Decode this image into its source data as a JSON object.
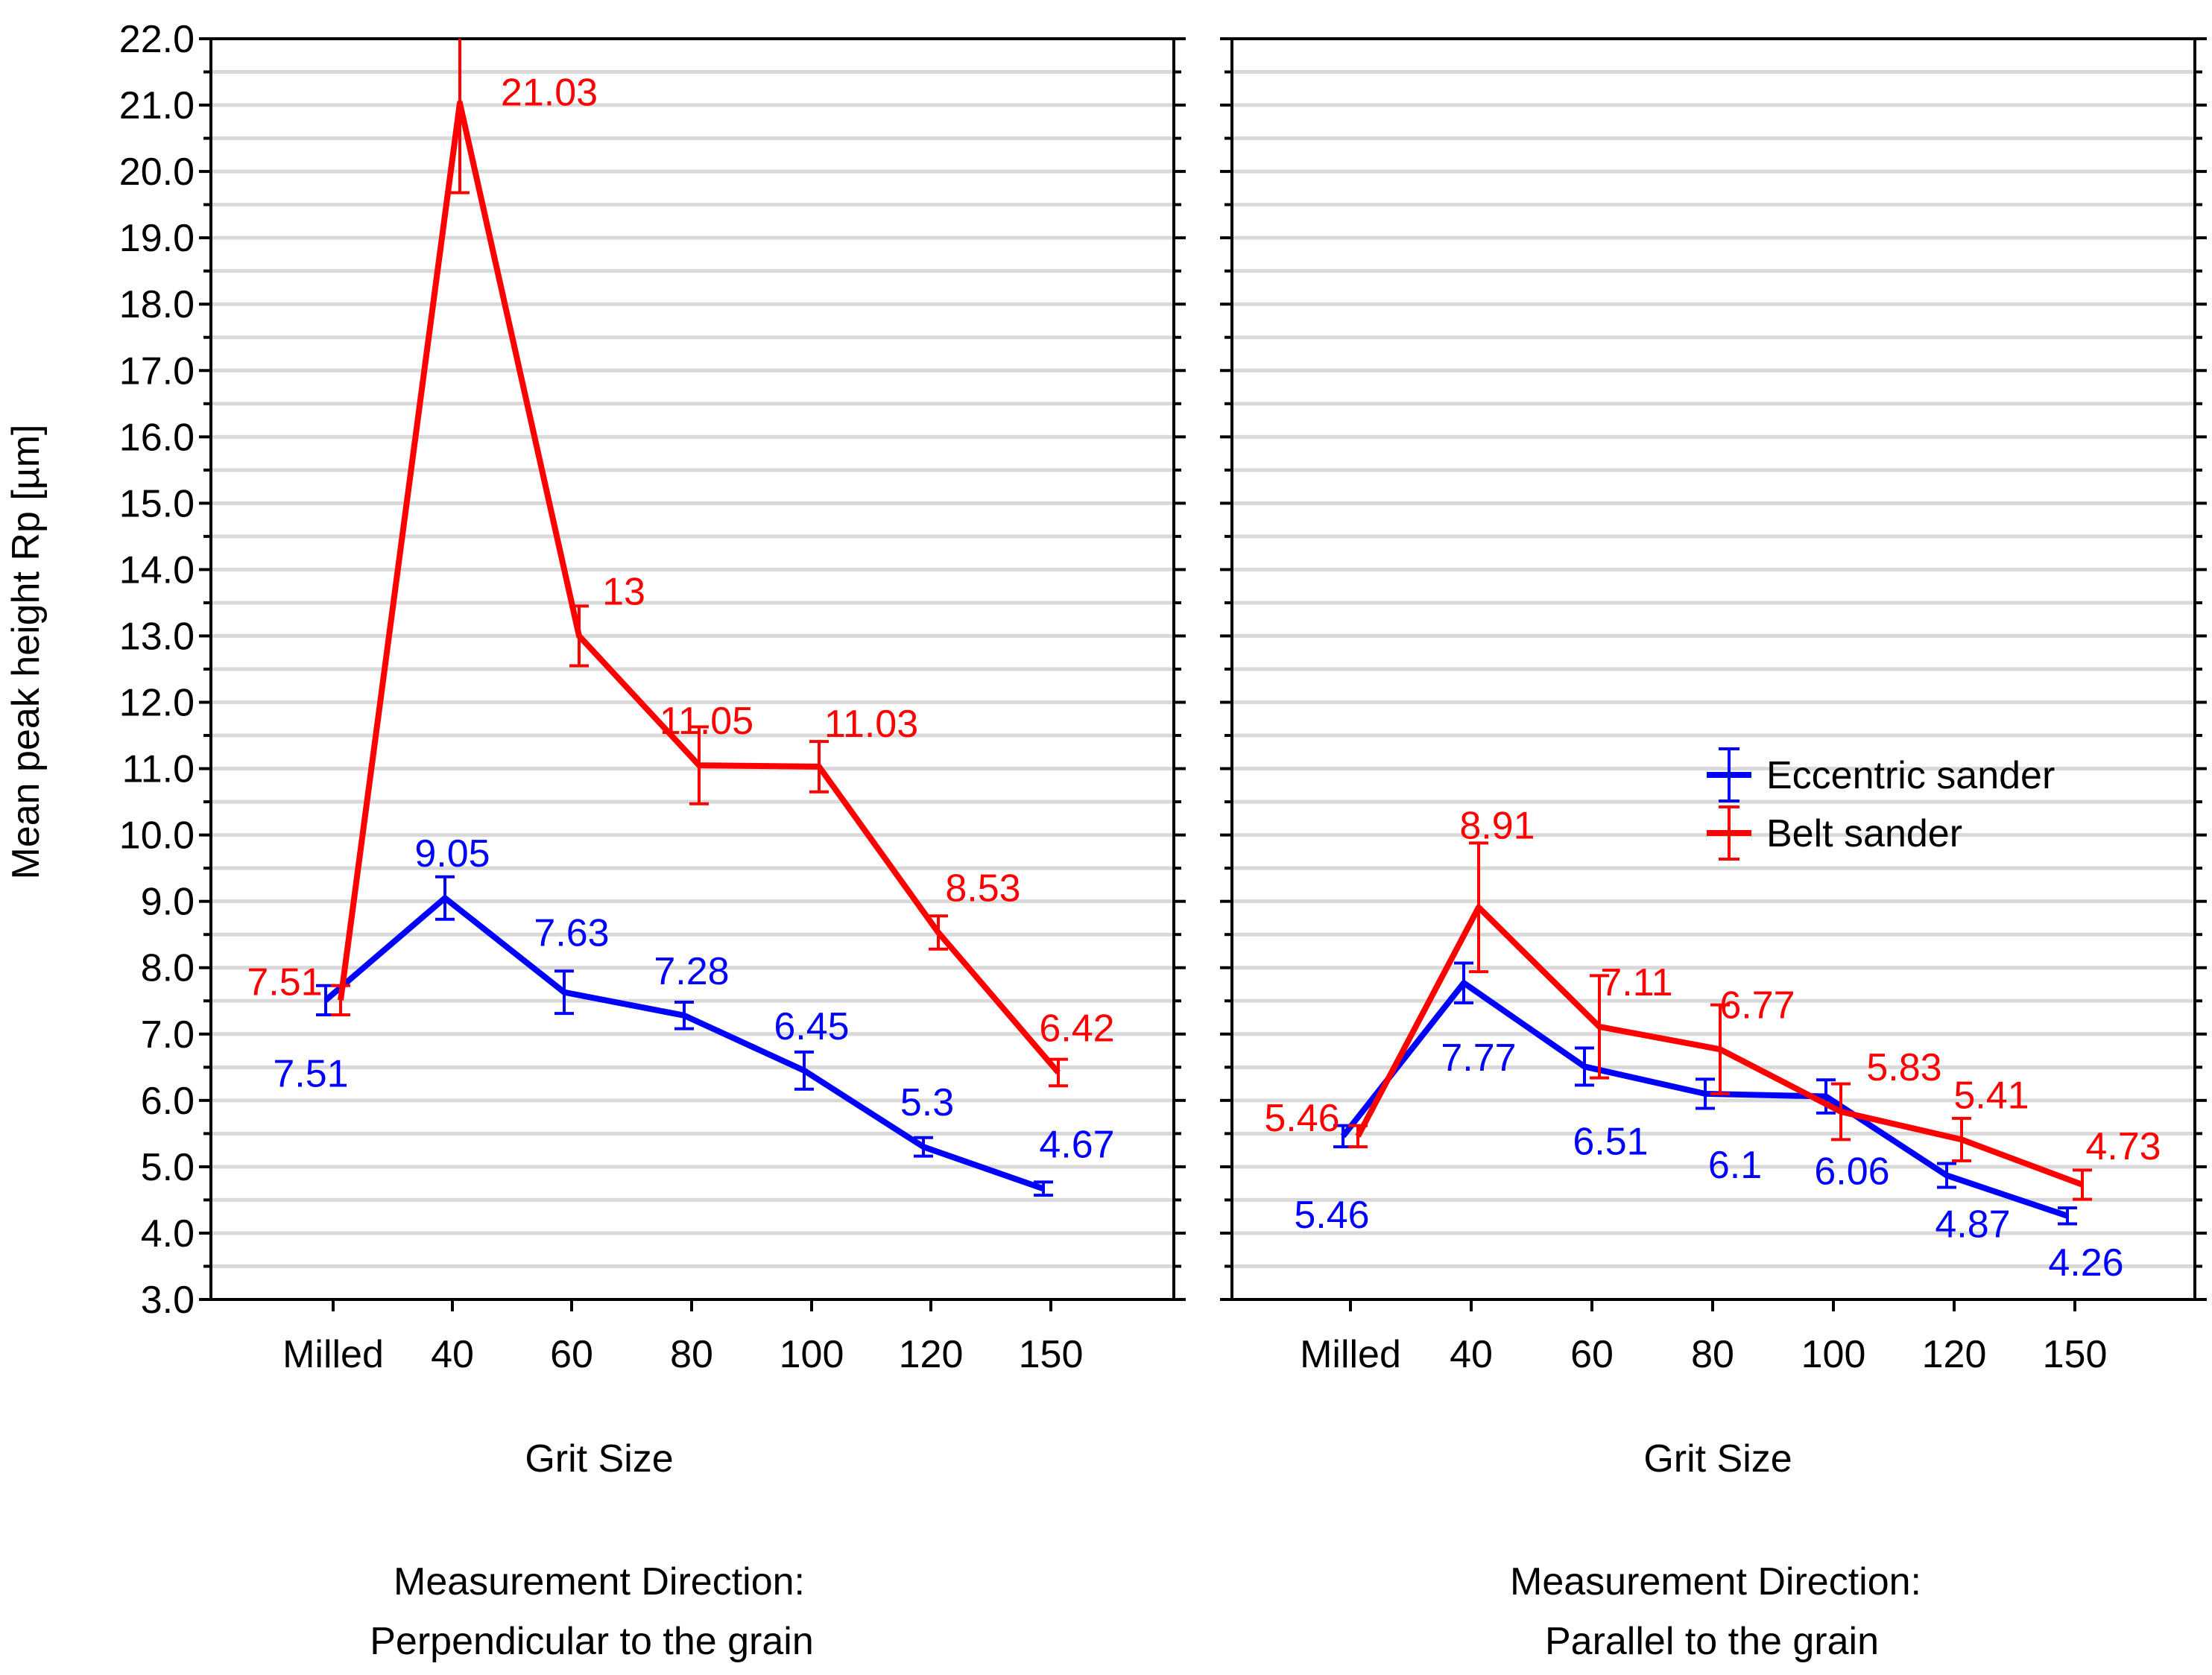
{
  "chart_data": {
    "type": "line",
    "ylabel": "Mean peak height Rp [µm]",
    "ylim": [
      3.0,
      22.0
    ],
    "ytick_labels": [
      "3.0",
      "4.0",
      "5.0",
      "6.0",
      "7.0",
      "8.0",
      "9.0",
      "10.0",
      "11.0",
      "12.0",
      "13.0",
      "14.0",
      "15.0",
      "16.0",
      "17.0",
      "18.0",
      "19.0",
      "20.0",
      "21.0",
      "22.0"
    ],
    "legend": {
      "position": "right-middle of right panel",
      "entries": [
        {
          "name": "Eccentric sander",
          "color": "#0000ff"
        },
        {
          "name": "Belt sander",
          "color": "#ff0000"
        }
      ]
    },
    "panels": [
      {
        "xlabel": "Grit Size",
        "direction_title": "Measurement Direction:",
        "direction": "Perpendicular to the grain",
        "categories": [
          "Milled",
          "40",
          "60",
          "80",
          "100",
          "120",
          "150"
        ],
        "series": [
          {
            "name": "Eccentric sander",
            "color": "#0000ff",
            "values": [
              7.51,
              9.05,
              7.63,
              7.28,
              6.45,
              5.3,
              4.67
            ],
            "error": [
              0.22,
              0.32,
              0.32,
              0.2,
              0.28,
              0.14,
              0.1
            ],
            "labels": [
              "7.51",
              "9.05",
              "7.63",
              "7.28",
              "6.45",
              "5.3",
              "4.67"
            ]
          },
          {
            "name": "Belt sander",
            "color": "#ff0000",
            "values": [
              7.51,
              21.03,
              13,
              11.05,
              11.03,
              8.53,
              6.42
            ],
            "error": [
              0.22,
              1.35,
              0.45,
              0.58,
              0.38,
              0.25,
              0.2
            ],
            "labels": [
              "7.51",
              "21.03",
              "13",
              "11.05",
              "11.03",
              "8.53",
              "6.42"
            ]
          }
        ]
      },
      {
        "xlabel": "Grit Size",
        "direction_title": "Measurement Direction:",
        "direction": "Parallel to the grain",
        "categories": [
          "Milled",
          "40",
          "60",
          "80",
          "100",
          "120",
          "150"
        ],
        "series": [
          {
            "name": "Eccentric sander",
            "color": "#0000ff",
            "values": [
              5.46,
              7.77,
              6.51,
              6.1,
              6.06,
              4.87,
              4.26
            ],
            "error": [
              0.16,
              0.3,
              0.28,
              0.22,
              0.25,
              0.18,
              0.12
            ],
            "labels": [
              "5.46",
              "7.77",
              "6.51",
              "6.1",
              "6.06",
              "4.87",
              "4.26"
            ]
          },
          {
            "name": "Belt sander",
            "color": "#ff0000",
            "values": [
              5.46,
              8.91,
              7.11,
              6.77,
              5.83,
              5.41,
              4.73
            ],
            "error": [
              0.16,
              0.97,
              0.77,
              0.67,
              0.42,
              0.32,
              0.22
            ],
            "labels": [
              "5.46",
              "8.91",
              "7.11",
              "6.77",
              "5.83",
              "5.41",
              "4.73"
            ]
          }
        ]
      }
    ]
  }
}
